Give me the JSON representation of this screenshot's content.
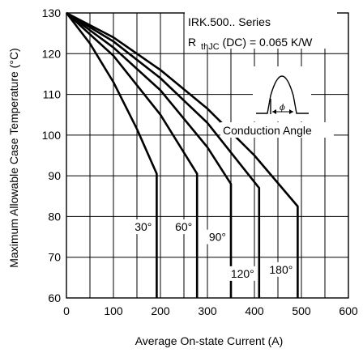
{
  "chart_data": {
    "type": "line",
    "title": "",
    "xlabel": "Average On-state Current (A)",
    "ylabel": "Maximum Allowable Case Temperature (°C)",
    "xlim": [
      0,
      600
    ],
    "ylim": [
      60,
      130
    ],
    "xticks": [
      "0",
      "100",
      "200",
      "300",
      "400",
      "500",
      "600"
    ],
    "yticks": [
      "60",
      "70",
      "80",
      "90",
      "100",
      "110",
      "120",
      "130"
    ],
    "grid": true,
    "annotations": {
      "series_label": "IRK.500.. Series",
      "rth_prefix": "R",
      "rth_sub": "thJC",
      "rth_suffix": "(DC) = 0.065 K/W",
      "conduction_label": "Conduction Angle",
      "theta_symbol": "ϕ"
    },
    "series": [
      {
        "label": "30°",
        "x": [
          0,
          50,
          100,
          150,
          192,
          192
        ],
        "y": [
          130,
          122.5,
          113,
          101.5,
          90.5,
          60
        ]
      },
      {
        "label": "60°",
        "x": [
          0,
          100,
          200,
          278,
          278
        ],
        "y": [
          130,
          119.5,
          105,
          90.5,
          60
        ]
      },
      {
        "label": "90°",
        "x": [
          0,
          100,
          200,
          300,
          350,
          350
        ],
        "y": [
          130,
          121.5,
          111,
          97,
          88,
          60
        ]
      },
      {
        "label": "120°",
        "x": [
          0,
          100,
          200,
          300,
          410,
          410
        ],
        "y": [
          130,
          123,
          114,
          103,
          87,
          60
        ]
      },
      {
        "label": "180°",
        "x": [
          0,
          100,
          200,
          300,
          400,
          492,
          492
        ],
        "y": [
          130,
          124,
          116,
          106.5,
          95,
          82.5,
          60
        ]
      }
    ]
  }
}
